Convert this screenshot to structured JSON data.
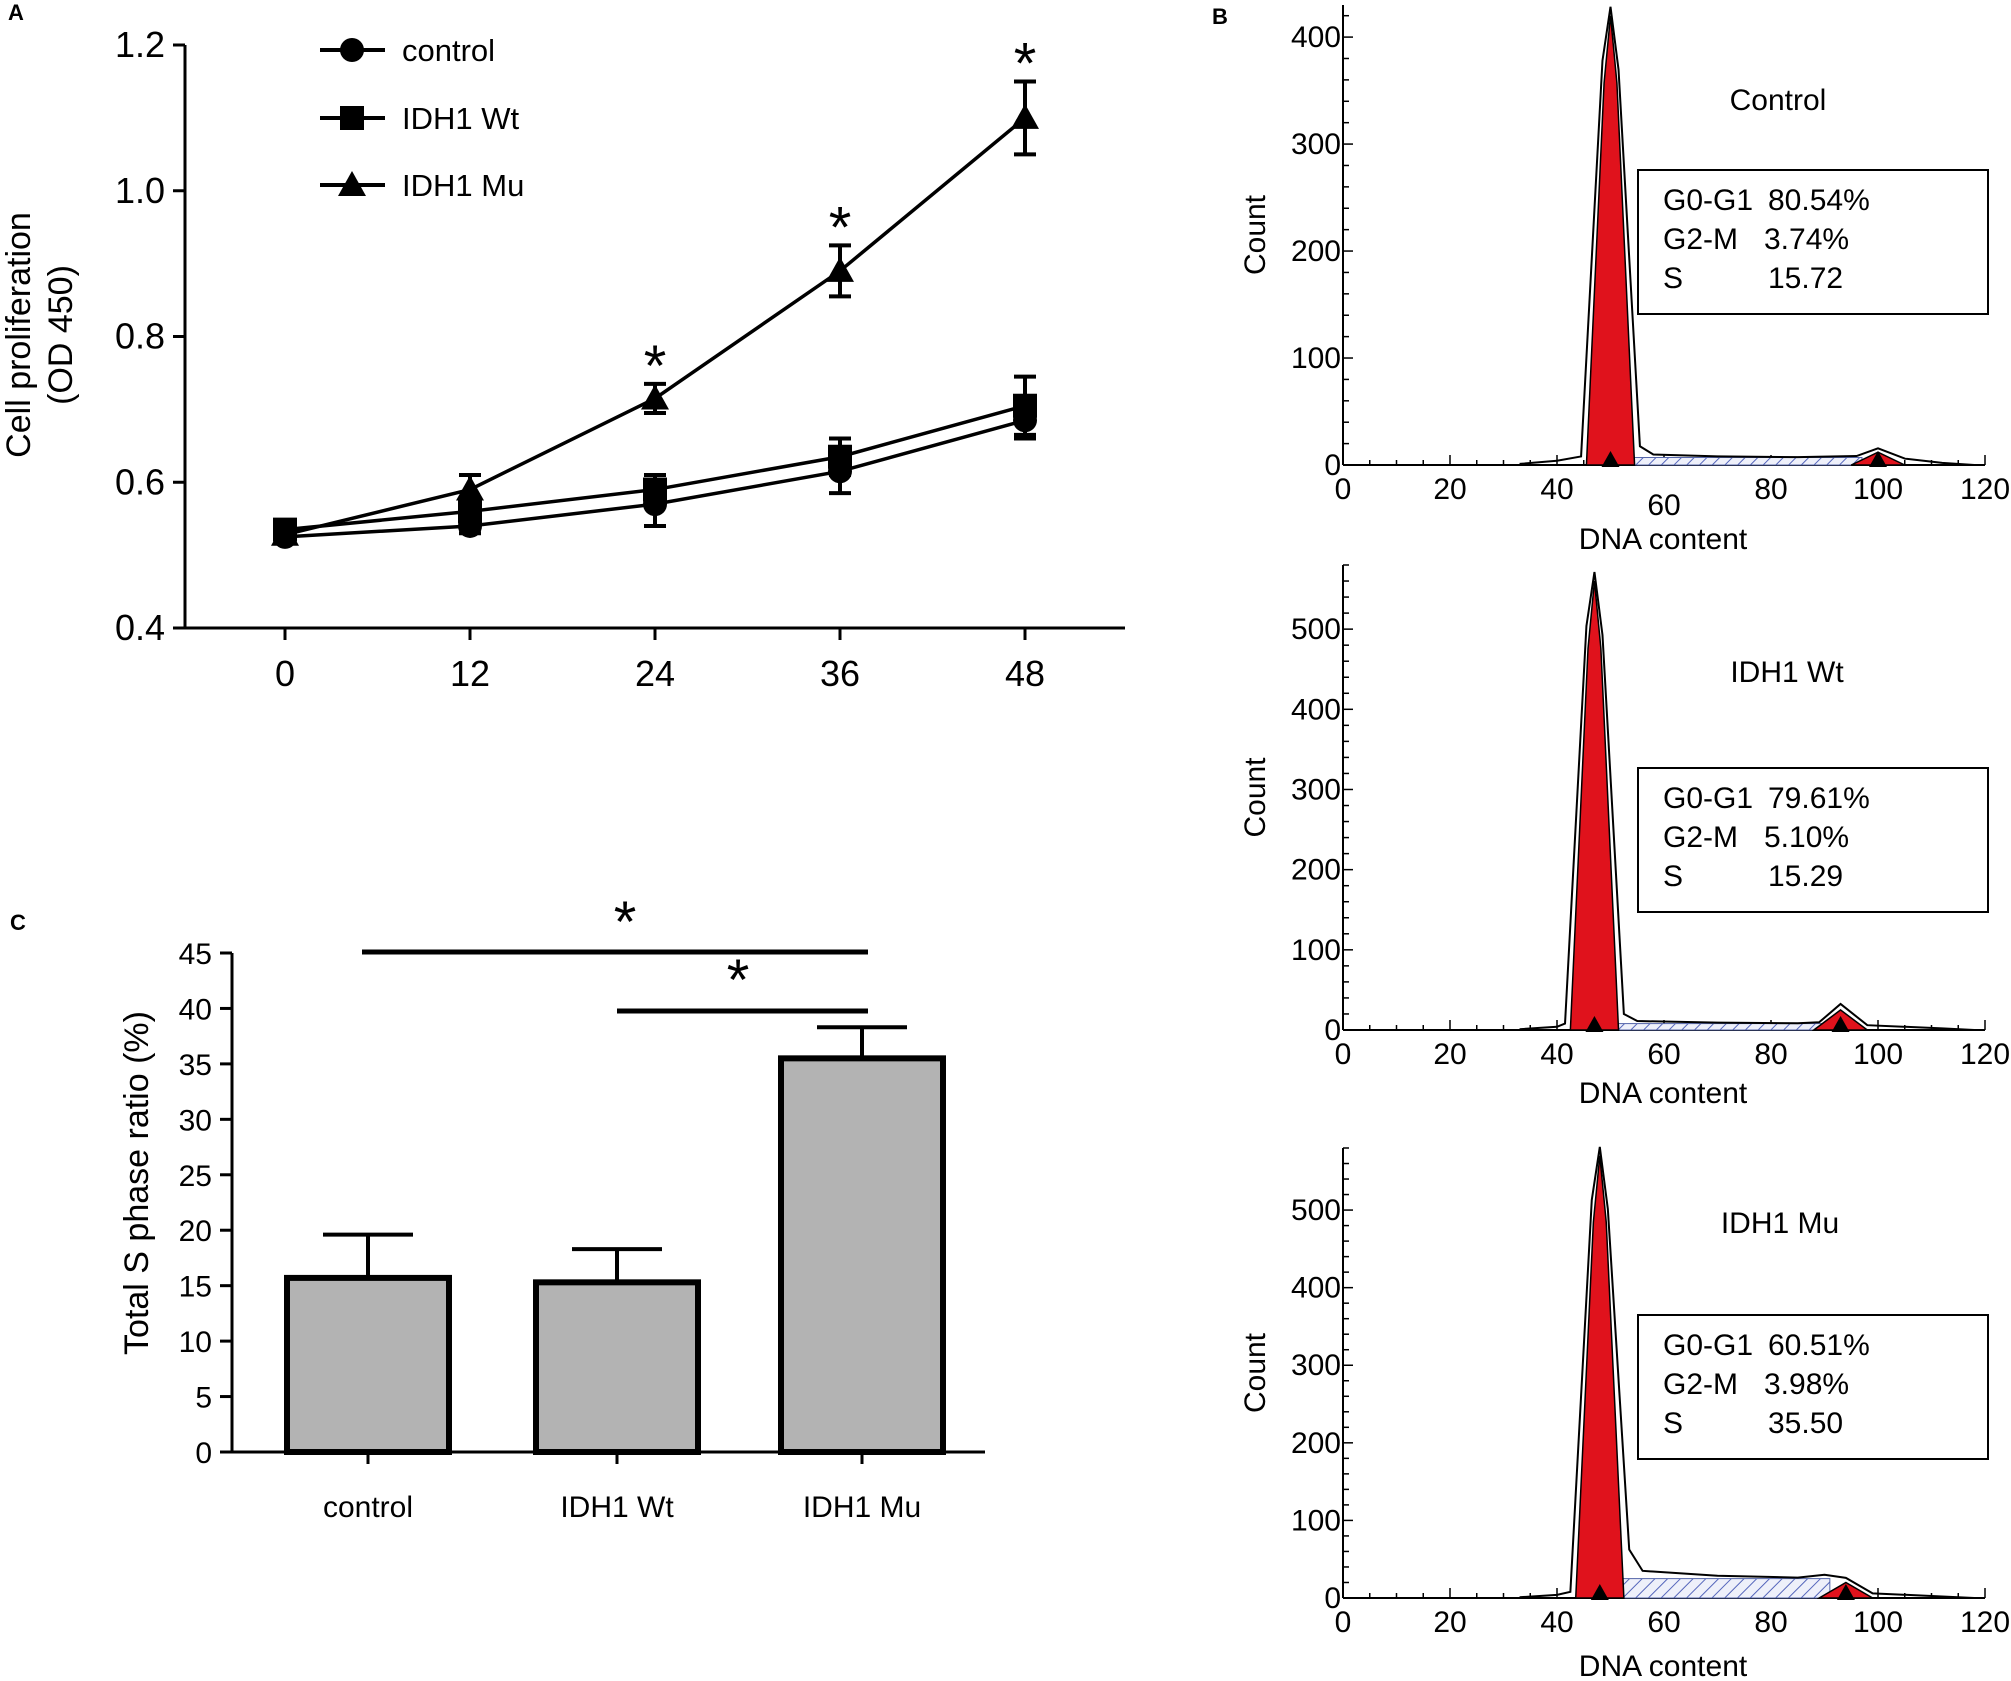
{
  "panels": {
    "a": "A",
    "b": "B",
    "c": "C"
  },
  "chart_data": [
    {
      "type": "line",
      "panel": "A",
      "xlabel": "",
      "ylabel_line1": "Cell proliferation",
      "ylabel_line2": "(OD 450)",
      "x": [
        0,
        12,
        24,
        36,
        48
      ],
      "x_ticks": [
        "0",
        "12",
        "24",
        "36",
        "48"
      ],
      "y_ticks": [
        "0.4",
        "0.6",
        "0.8",
        "1.0",
        "1.2"
      ],
      "ylim": [
        0.4,
        1.2
      ],
      "series": [
        {
          "name": "control",
          "marker": "circle",
          "values": [
            0.525,
            0.54,
            0.57,
            0.615,
            0.685
          ],
          "err": [
            0.008,
            0.01,
            0.03,
            0.03,
            0.025
          ]
        },
        {
          "name": "IDH1 Wt",
          "marker": "square",
          "values": [
            0.535,
            0.56,
            0.59,
            0.635,
            0.705
          ],
          "err": [
            0.008,
            0.01,
            0.02,
            0.025,
            0.04
          ]
        },
        {
          "name": "IDH1 Mu",
          "marker": "triangle",
          "values": [
            0.528,
            0.59,
            0.715,
            0.89,
            1.1
          ],
          "err": [
            0.008,
            0.02,
            0.02,
            0.035,
            0.05
          ]
        }
      ],
      "significance": {
        "symbol": "*",
        "at_x": [
          24,
          36,
          48
        ]
      }
    },
    {
      "type": "bar",
      "panel": "C",
      "ylabel": "Total S phase ratio (%)",
      "categories": [
        "control",
        "IDH1 Wt",
        "IDH1 Mu"
      ],
      "values": [
        15.7,
        15.3,
        35.5
      ],
      "err": [
        3.9,
        3.0,
        2.8
      ],
      "y_ticks": [
        "0",
        "5",
        "10",
        "15",
        "20",
        "25",
        "30",
        "35",
        "40",
        "45"
      ],
      "ylim": [
        0,
        45
      ],
      "significance": [
        {
          "from": "control",
          "to": "IDH1 Mu",
          "symbol": "*"
        },
        {
          "from": "IDH1 Wt",
          "to": "IDH1 Mu",
          "symbol": "*"
        }
      ]
    },
    {
      "type": "area",
      "panel": "B",
      "title": "Control",
      "xlabel": "DNA content",
      "ylabel": "Count",
      "x_ticks": [
        "0",
        "20",
        "40",
        "60",
        "80",
        "100",
        "120"
      ],
      "y_ticks": [
        "0",
        "100",
        "200",
        "300",
        "400"
      ],
      "xlim": [
        0,
        120
      ],
      "ylim": [
        0,
        430
      ],
      "g1_peak": {
        "x": 50,
        "count": 420
      },
      "g2_peak": {
        "x": 100,
        "count": 12
      },
      "stats": [
        {
          "label": "G0-G1",
          "value": "80.54%"
        },
        {
          "label": "G2-M",
          "value": "3.74%"
        },
        {
          "label": "S",
          "value": "15.72"
        }
      ]
    },
    {
      "type": "area",
      "panel": "B",
      "title": "IDH1 Wt",
      "xlabel": "DNA content",
      "ylabel": "Count",
      "x_ticks": [
        "0",
        "20",
        "40",
        "60",
        "80",
        "100",
        "120"
      ],
      "y_ticks": [
        "0",
        "100",
        "200",
        "300",
        "400",
        "500"
      ],
      "xlim": [
        0,
        120
      ],
      "ylim": [
        0,
        580
      ],
      "g1_peak": {
        "x": 47,
        "count": 560
      },
      "g2_peak": {
        "x": 93,
        "count": 25
      },
      "stats": [
        {
          "label": "G0-G1",
          "value": "79.61%"
        },
        {
          "label": "G2-M",
          "value": "5.10%"
        },
        {
          "label": "S",
          "value": "15.29"
        }
      ]
    },
    {
      "type": "area",
      "panel": "B",
      "title": "IDH1 Mu",
      "xlabel": "DNA content",
      "ylabel": "Count",
      "x_ticks": [
        "0",
        "20",
        "40",
        "60",
        "80",
        "100",
        "120"
      ],
      "y_ticks": [
        "0",
        "100",
        "200",
        "300",
        "400",
        "500"
      ],
      "xlim": [
        0,
        120
      ],
      "ylim": [
        0,
        580
      ],
      "g1_peak": {
        "x": 48,
        "count": 570
      },
      "g2_peak": {
        "x": 94,
        "count": 20
      },
      "stats": [
        {
          "label": "G0-G1",
          "value": "60.51%"
        },
        {
          "label": "G2-M",
          "value": "3.98%"
        },
        {
          "label": "S",
          "value": "35.50"
        }
      ]
    }
  ]
}
